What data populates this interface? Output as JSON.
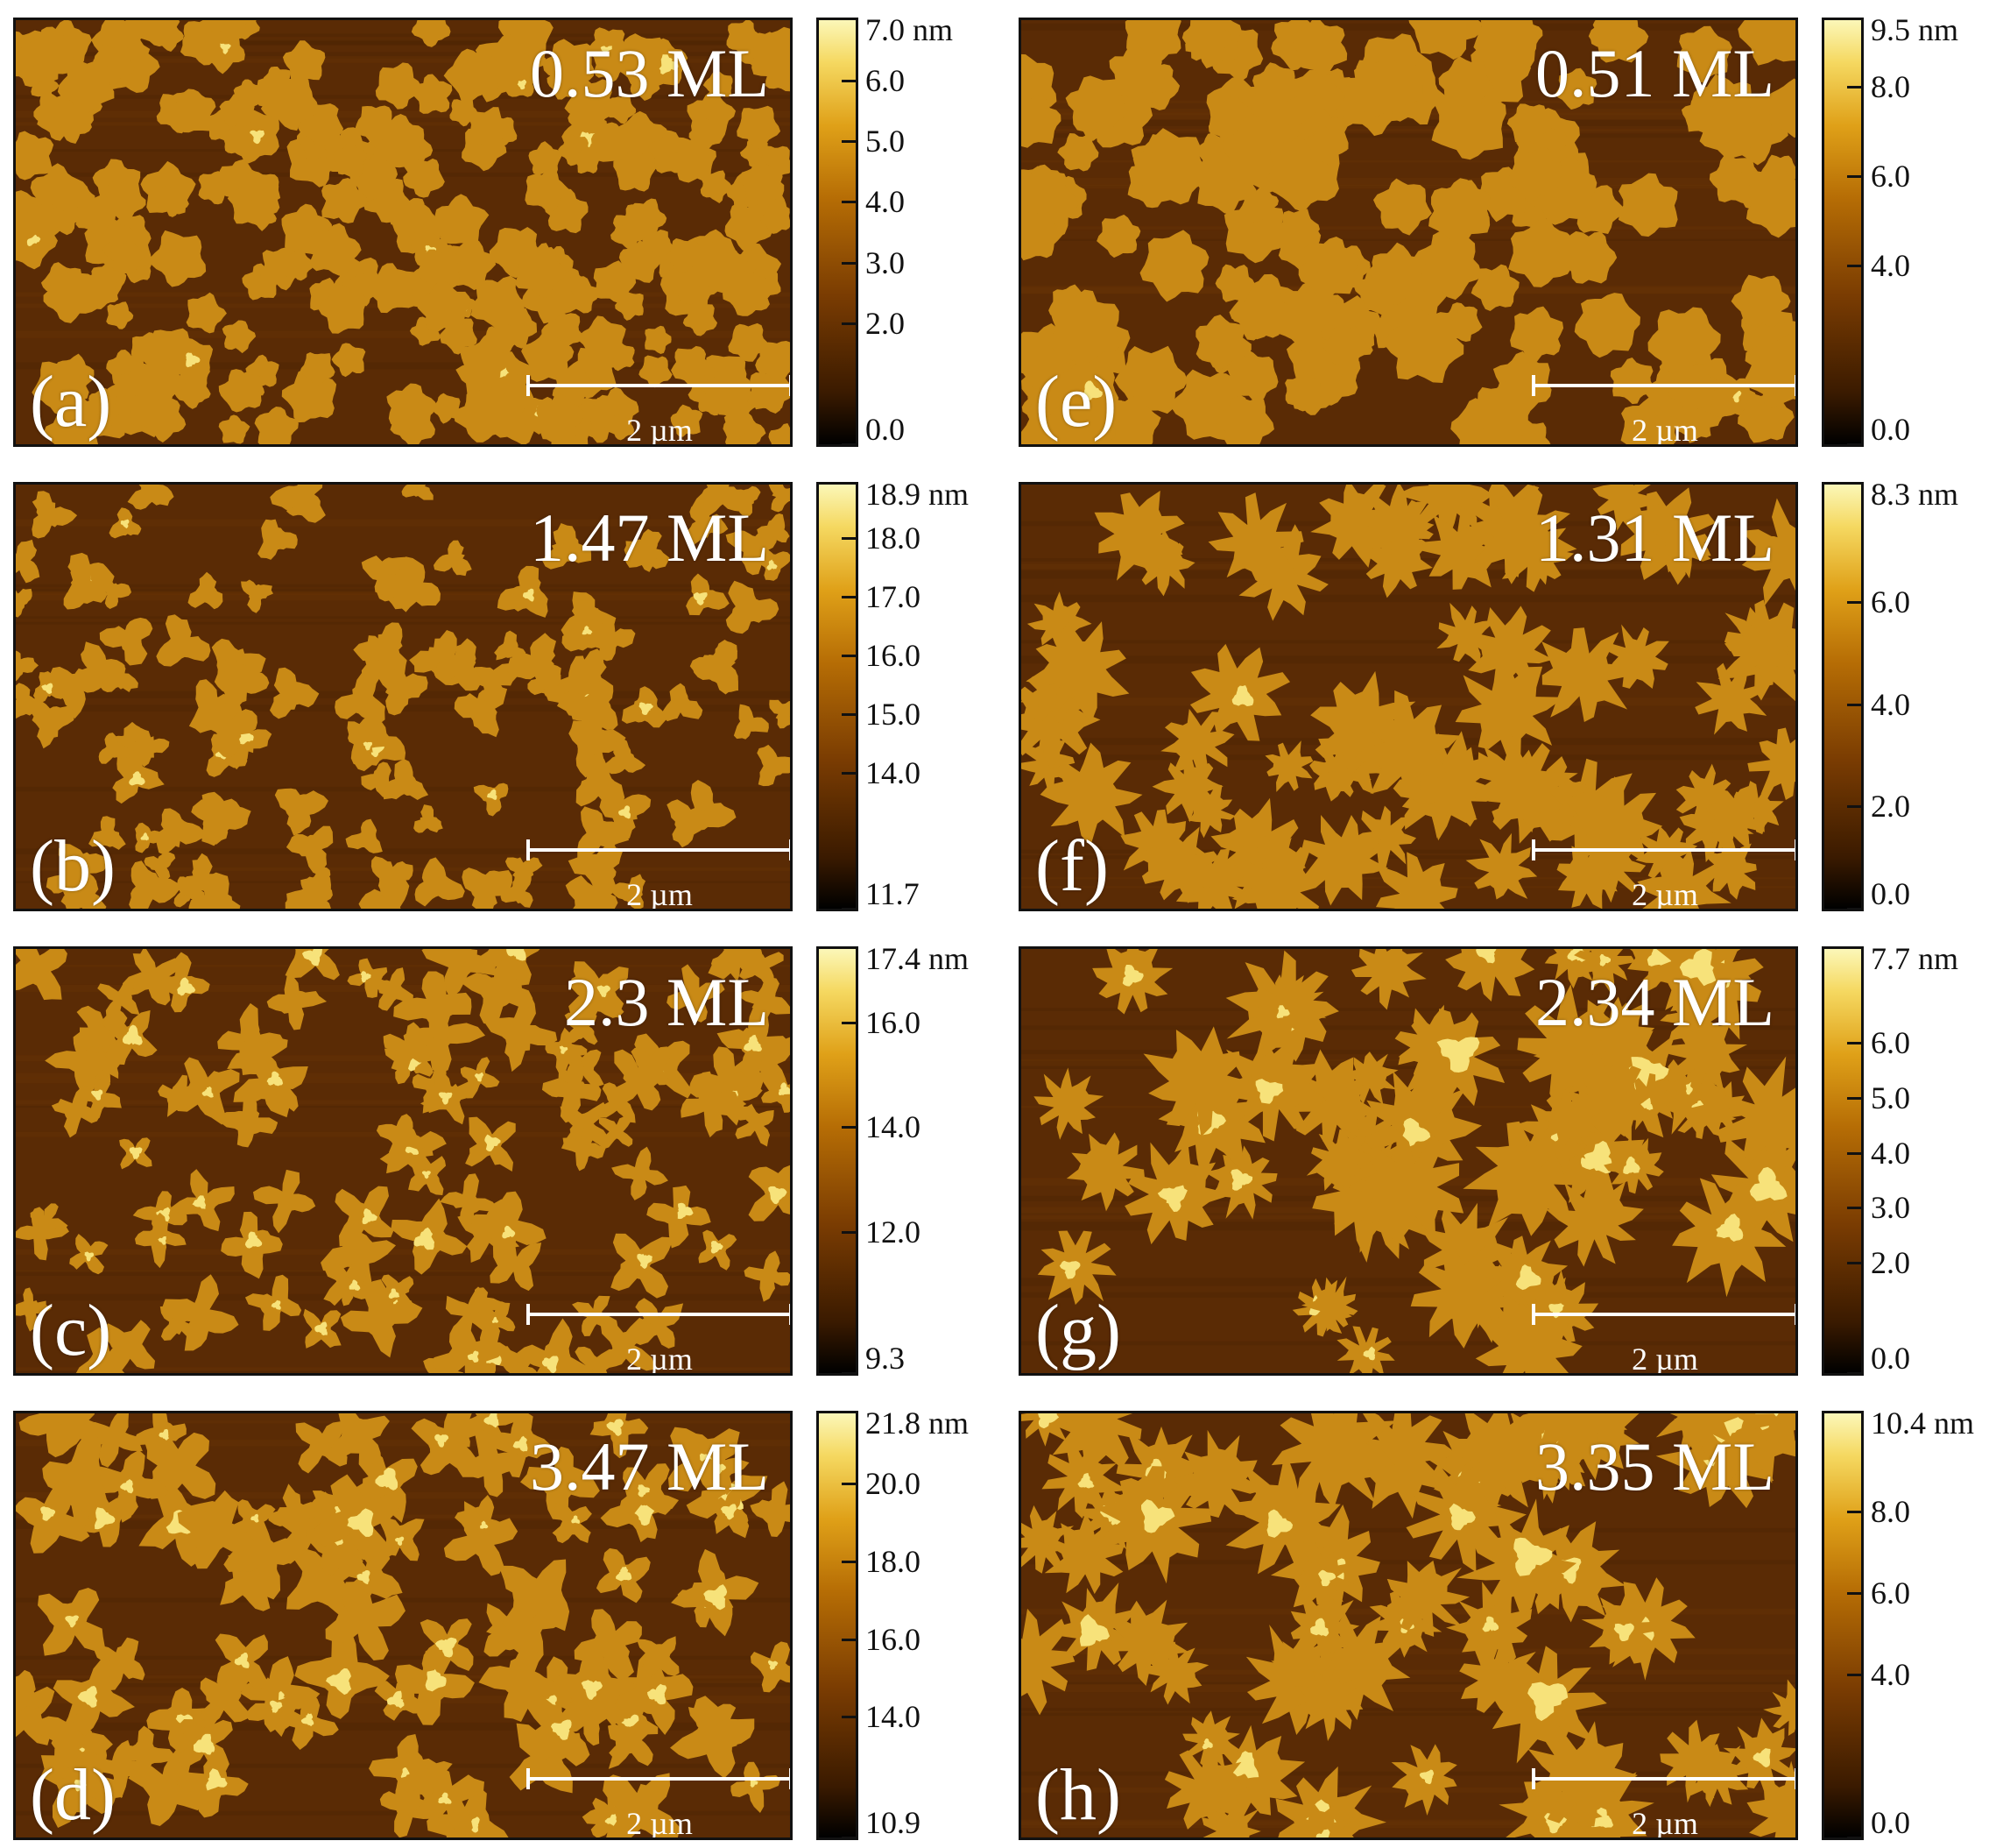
{
  "panels": [
    {
      "id": "a",
      "tag": "(a)",
      "coverage": "0.53 ML",
      "scale": "2 µm",
      "colorbar": {
        "max_label": "7.0 nm",
        "ticks": [
          "6.0",
          "5.0",
          "4.0",
          "3.0",
          "2.0",
          "0.0"
        ],
        "tick_values": [
          6.0,
          5.0,
          4.0,
          3.0,
          2.0,
          0.0
        ],
        "min": 0.0,
        "max": 7.0
      }
    },
    {
      "id": "b",
      "tag": "(b)",
      "coverage": "1.47 ML",
      "scale": "2 µm",
      "colorbar": {
        "max_label": "18.9 nm",
        "ticks": [
          "18.0",
          "17.0",
          "16.0",
          "15.0",
          "14.0",
          "11.7"
        ],
        "tick_values": [
          18.0,
          17.0,
          16.0,
          15.0,
          14.0,
          11.7
        ],
        "min": 11.7,
        "max": 18.9
      }
    },
    {
      "id": "c",
      "tag": "(c)",
      "coverage": "2.3 ML",
      "scale": "2 µm",
      "colorbar": {
        "max_label": "17.4 nm",
        "ticks": [
          "16.0",
          "14.0",
          "12.0",
          "9.3"
        ],
        "tick_values": [
          16.0,
          14.0,
          12.0,
          9.3
        ],
        "min": 9.3,
        "max": 17.4
      }
    },
    {
      "id": "d",
      "tag": "(d)",
      "coverage": "3.47 ML",
      "scale": "2 µm",
      "colorbar": {
        "max_label": "21.8 nm",
        "ticks": [
          "20.0",
          "18.0",
          "16.0",
          "14.0",
          "10.9"
        ],
        "tick_values": [
          20.0,
          18.0,
          16.0,
          14.0,
          10.9
        ],
        "min": 10.9,
        "max": 21.8
      }
    },
    {
      "id": "e",
      "tag": "(e)",
      "coverage": "0.51 ML",
      "scale": "2 µm",
      "colorbar": {
        "max_label": "9.5 nm",
        "ticks": [
          "8.0",
          "6.0",
          "4.0",
          "0.0"
        ],
        "tick_values": [
          8.0,
          6.0,
          4.0,
          0.0
        ],
        "min": 0.0,
        "max": 9.5
      }
    },
    {
      "id": "f",
      "tag": "(f)",
      "coverage": "1.31 ML",
      "scale": "2 µm",
      "colorbar": {
        "max_label": "8.3 nm",
        "ticks": [
          "6.0",
          "4.0",
          "2.0",
          "0.0"
        ],
        "tick_values": [
          6.0,
          4.0,
          2.0,
          0.0
        ],
        "min": 0.0,
        "max": 8.3
      }
    },
    {
      "id": "g",
      "tag": "(g)",
      "coverage": "2.34 ML",
      "scale": "2 µm",
      "colorbar": {
        "max_label": "7.7 nm",
        "ticks": [
          "6.0",
          "5.0",
          "4.0",
          "3.0",
          "2.0",
          "0.0"
        ],
        "tick_values": [
          6.0,
          5.0,
          4.0,
          3.0,
          2.0,
          0.0
        ],
        "min": 0.0,
        "max": 7.7
      }
    },
    {
      "id": "h",
      "tag": "(h)",
      "coverage": "3.35 ML",
      "scale": "2 µm",
      "colorbar": {
        "max_label": "10.4 nm",
        "ticks": [
          "8.0",
          "6.0",
          "4.0",
          "0.0"
        ],
        "tick_values": [
          8.0,
          6.0,
          4.0,
          0.0
        ],
        "min": 0.0,
        "max": 10.4
      }
    }
  ],
  "colors": {
    "substrate": "#5a2b05",
    "island": "#c98a16",
    "peak": "#f7e27a"
  }
}
